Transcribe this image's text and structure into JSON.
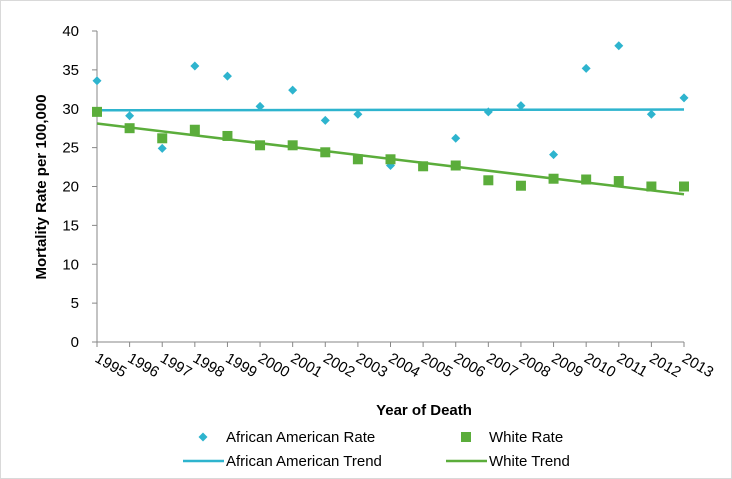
{
  "chart_data": {
    "type": "scatter",
    "title": "",
    "xlabel": "Year of Death",
    "ylabel": "Mortality Rate  per 100,000",
    "ylim": [
      0,
      40
    ],
    "yticks": [
      0,
      5,
      10,
      15,
      20,
      25,
      30,
      35,
      40
    ],
    "grid": false,
    "legend_position": "bottom",
    "categories": [
      "1995",
      "1996",
      "1997",
      "1998",
      "1999",
      "2000",
      "2001",
      "2002",
      "2003",
      "2004",
      "2005",
      "2006",
      "2007",
      "2008",
      "2009",
      "2010",
      "2011",
      "2012",
      "2013"
    ],
    "series": [
      {
        "name": "African American Rate",
        "kind": "marker",
        "marker": "diamond",
        "color": "#2EB4CE",
        "values": [
          33.6,
          29.1,
          24.9,
          35.5,
          34.2,
          30.3,
          32.4,
          28.5,
          29.3,
          22.7,
          null,
          26.2,
          29.6,
          30.4,
          24.1,
          35.2,
          38.1,
          29.3,
          31.4
        ]
      },
      {
        "name": "White Rate",
        "kind": "marker",
        "marker": "square",
        "color": "#5BAD3B",
        "values": [
          29.6,
          27.5,
          26.2,
          27.3,
          26.5,
          25.3,
          25.3,
          24.4,
          23.5,
          23.5,
          22.6,
          22.7,
          20.8,
          20.1,
          21.0,
          20.9,
          20.7,
          20.0,
          20.0
        ]
      },
      {
        "name": "African American Trend",
        "kind": "line",
        "color": "#2EB4CE",
        "start": 29.8,
        "end": 29.9
      },
      {
        "name": "White Trend",
        "kind": "line",
        "color": "#5BAD3B",
        "start": 28.1,
        "end": 19.0
      }
    ]
  }
}
